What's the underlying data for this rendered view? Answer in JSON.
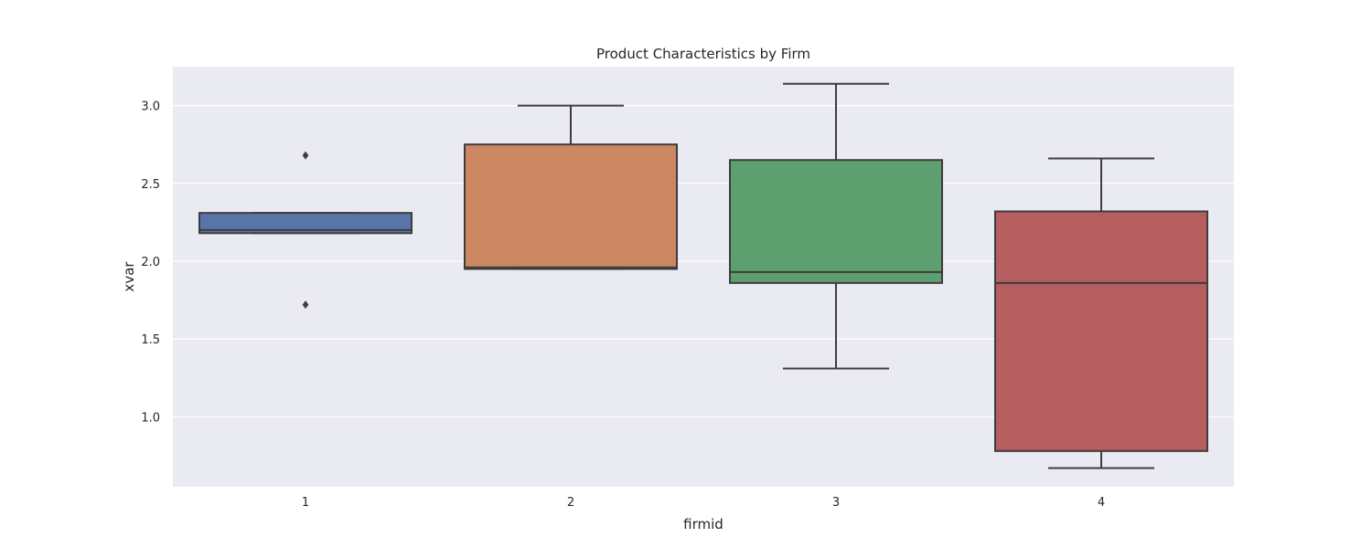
{
  "chart_data": {
    "type": "box",
    "title": "Product Characteristics by Firm",
    "xlabel": "firmid",
    "ylabel": "xvar",
    "categories": [
      "1",
      "2",
      "3",
      "4"
    ],
    "ylim": [
      0.55,
      3.25
    ],
    "yticks": [
      "1.0",
      "1.5",
      "2.0",
      "2.5",
      "3.0"
    ],
    "grid": true,
    "boxes": [
      {
        "category": "1",
        "color": "#5875aa",
        "whisker_low": 2.18,
        "q1": 2.18,
        "median": 2.2,
        "q3": 2.31,
        "whisker_high": 2.31,
        "outliers": [
          2.68,
          1.72
        ]
      },
      {
        "category": "2",
        "color": "#cd8763",
        "whisker_low": 1.95,
        "q1": 1.95,
        "median": 1.96,
        "q3": 2.75,
        "whisker_high": 3.0,
        "outliers": []
      },
      {
        "category": "3",
        "color": "#5d9f6f",
        "whisker_low": 1.31,
        "q1": 1.86,
        "median": 1.93,
        "q3": 2.65,
        "whisker_high": 3.14,
        "outliers": []
      },
      {
        "category": "4",
        "color": "#b65d60",
        "whisker_low": 0.67,
        "q1": 0.78,
        "median": 1.86,
        "q3": 2.32,
        "whisker_high": 2.66,
        "outliers": []
      }
    ],
    "colors": {
      "background": "#eaeaf2",
      "grid": "#ffffff",
      "line": "#3d3d3d"
    }
  }
}
